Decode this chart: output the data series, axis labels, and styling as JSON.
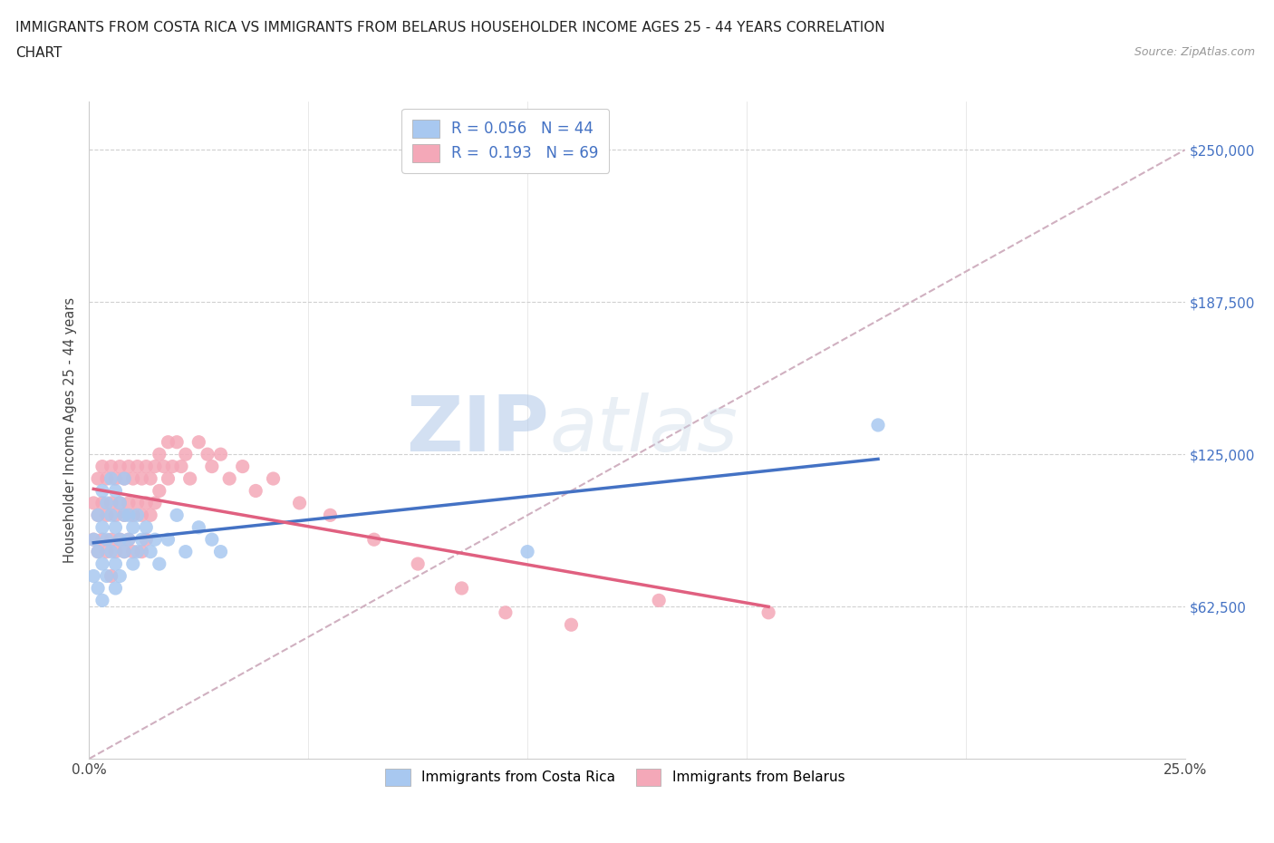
{
  "title_line1": "IMMIGRANTS FROM COSTA RICA VS IMMIGRANTS FROM BELARUS HOUSEHOLDER INCOME AGES 25 - 44 YEARS CORRELATION",
  "title_line2": "CHART",
  "source": "Source: ZipAtlas.com",
  "ylabel": "Householder Income Ages 25 - 44 years",
  "xlim": [
    0.0,
    0.25
  ],
  "ylim": [
    0,
    270000
  ],
  "ytick_values": [
    62500,
    125000,
    187500,
    250000
  ],
  "ytick_labels": [
    "$62,500",
    "$125,000",
    "$187,500",
    "$250,000"
  ],
  "xtick_values": [
    0.0,
    0.05,
    0.1,
    0.15,
    0.2,
    0.25
  ],
  "xtick_labels": [
    "0.0%",
    "",
    "",
    "",
    "",
    "25.0%"
  ],
  "costa_rica_R": 0.056,
  "costa_rica_N": 44,
  "belarus_R": 0.193,
  "belarus_N": 69,
  "costa_rica_color": "#a8c8f0",
  "belarus_color": "#f4a8b8",
  "costa_rica_line_color": "#4472c4",
  "belarus_line_color": "#e06080",
  "ref_line_color": "#d0b0c0",
  "background_color": "#ffffff",
  "watermark_zip": "ZIP",
  "watermark_atlas": "atlas",
  "ytick_color": "#4472c4",
  "costa_rica_x": [
    0.001,
    0.001,
    0.002,
    0.002,
    0.002,
    0.003,
    0.003,
    0.003,
    0.003,
    0.004,
    0.004,
    0.004,
    0.005,
    0.005,
    0.005,
    0.006,
    0.006,
    0.006,
    0.006,
    0.007,
    0.007,
    0.007,
    0.008,
    0.008,
    0.008,
    0.009,
    0.009,
    0.01,
    0.01,
    0.011,
    0.011,
    0.012,
    0.013,
    0.014,
    0.015,
    0.016,
    0.018,
    0.02,
    0.022,
    0.025,
    0.028,
    0.1,
    0.18,
    0.03
  ],
  "costa_rica_y": [
    90000,
    75000,
    100000,
    85000,
    70000,
    110000,
    95000,
    80000,
    65000,
    105000,
    90000,
    75000,
    115000,
    100000,
    85000,
    110000,
    95000,
    80000,
    70000,
    105000,
    90000,
    75000,
    115000,
    100000,
    85000,
    100000,
    90000,
    95000,
    80000,
    100000,
    85000,
    90000,
    95000,
    85000,
    90000,
    80000,
    90000,
    100000,
    85000,
    95000,
    90000,
    85000,
    137000,
    85000
  ],
  "belarus_x": [
    0.001,
    0.001,
    0.002,
    0.002,
    0.002,
    0.003,
    0.003,
    0.003,
    0.004,
    0.004,
    0.004,
    0.005,
    0.005,
    0.005,
    0.005,
    0.006,
    0.006,
    0.006,
    0.007,
    0.007,
    0.007,
    0.008,
    0.008,
    0.008,
    0.009,
    0.009,
    0.009,
    0.01,
    0.01,
    0.01,
    0.011,
    0.011,
    0.012,
    0.012,
    0.012,
    0.013,
    0.013,
    0.013,
    0.014,
    0.014,
    0.015,
    0.015,
    0.016,
    0.016,
    0.017,
    0.018,
    0.018,
    0.019,
    0.02,
    0.021,
    0.022,
    0.023,
    0.025,
    0.027,
    0.028,
    0.03,
    0.032,
    0.035,
    0.038,
    0.042,
    0.048,
    0.055,
    0.065,
    0.075,
    0.085,
    0.095,
    0.11,
    0.13,
    0.155
  ],
  "belarus_y": [
    90000,
    105000,
    115000,
    100000,
    85000,
    120000,
    105000,
    90000,
    115000,
    100000,
    85000,
    120000,
    105000,
    90000,
    75000,
    115000,
    100000,
    85000,
    120000,
    105000,
    90000,
    115000,
    100000,
    85000,
    120000,
    105000,
    90000,
    115000,
    100000,
    85000,
    120000,
    105000,
    115000,
    100000,
    85000,
    120000,
    105000,
    90000,
    115000,
    100000,
    120000,
    105000,
    125000,
    110000,
    120000,
    130000,
    115000,
    120000,
    130000,
    120000,
    125000,
    115000,
    130000,
    125000,
    120000,
    125000,
    115000,
    120000,
    110000,
    115000,
    105000,
    100000,
    90000,
    80000,
    70000,
    60000,
    55000,
    65000,
    60000
  ]
}
